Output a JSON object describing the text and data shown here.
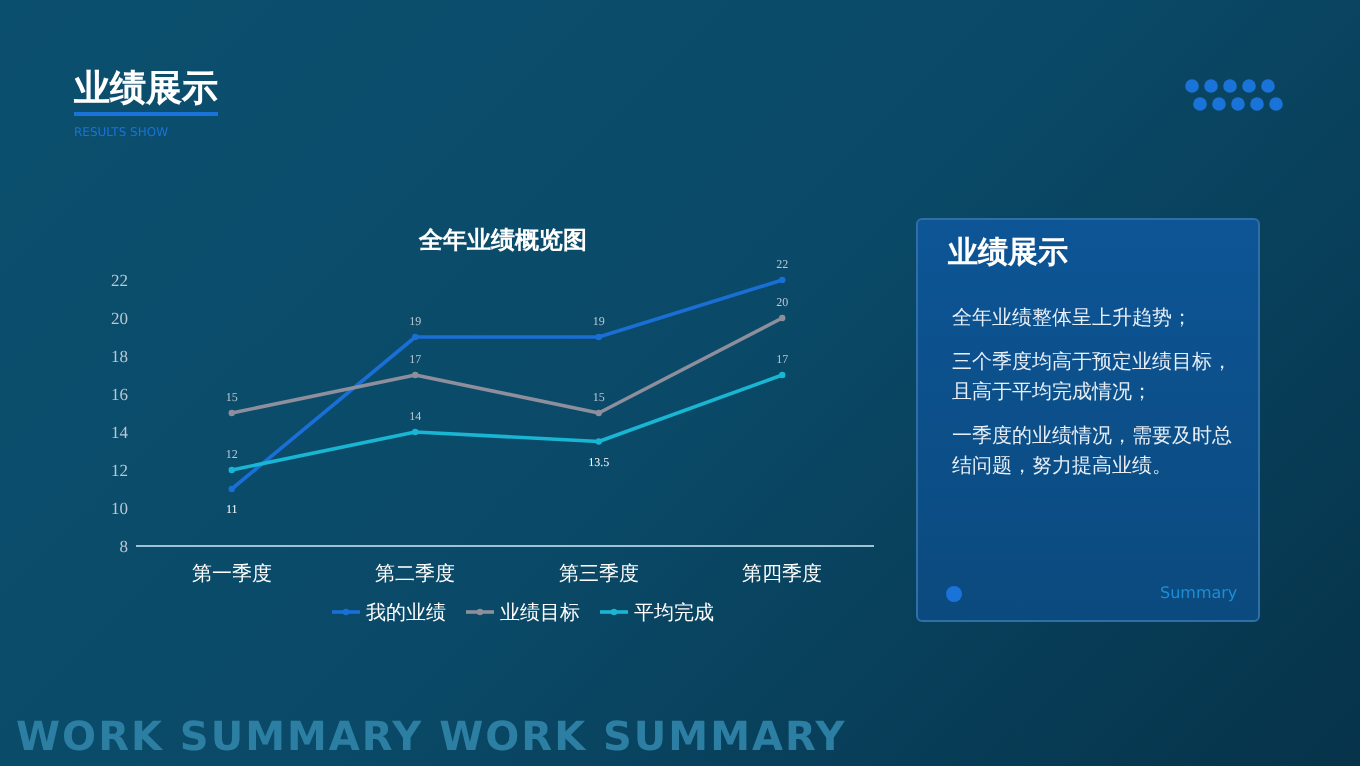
{
  "chart_data": {
    "type": "line",
    "title": "全年业绩概览图",
    "categories": [
      "第一季度",
      "第二季度",
      "第三季度",
      "第四季度"
    ],
    "series": [
      {
        "name": "我的业绩",
        "color": "#1a6fd6",
        "values": [
          11,
          19,
          19,
          22
        ]
      },
      {
        "name": "业绩目标",
        "color": "#8e8f9c",
        "values": [
          15,
          17,
          15,
          20
        ]
      },
      {
        "name": "平均完成",
        "color": "#19b6d4",
        "values": [
          12,
          14,
          13.5,
          17
        ]
      }
    ],
    "ylim": [
      8,
      22
    ],
    "yticks": [
      8,
      10,
      12,
      14,
      16,
      18,
      20,
      22
    ],
    "data_labels": true,
    "legend": "bottom",
    "marker": "circle",
    "line_style": "solid",
    "grid": false,
    "annotations": [
      "业绩展示",
      "RESULTS SHOW",
      "业绩展示",
      "全年业绩整体呈上升趋势；",
      "三个季度均高于预定业绩目标，且高于平均完成情况；",
      "一季度的业绩情况，需要及时总结问题，努力提高业绩。",
      "Summary",
      "WORK SUMMARY WORK SUMMARY"
    ]
  }
}
